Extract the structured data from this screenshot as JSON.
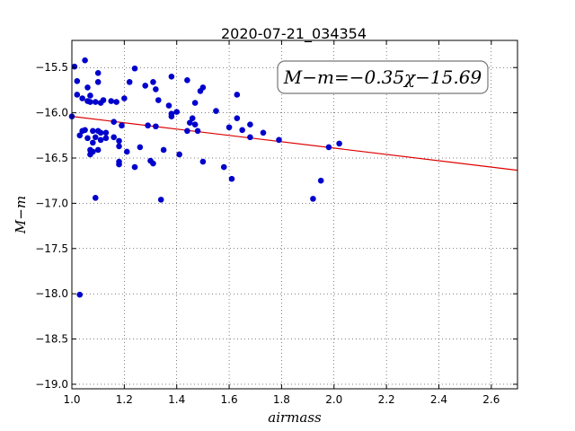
{
  "chart_data": {
    "type": "scatter",
    "title": "2020-07-21_034354",
    "xlabel": "airmass",
    "ylabel": "M−m",
    "xlim": [
      1.0,
      2.7
    ],
    "ylim": [
      -19.05,
      -15.2
    ],
    "y_inverted": true,
    "grid": true,
    "x_ticks": [
      1.0,
      1.2,
      1.4,
      1.6,
      1.8,
      2.0,
      2.2,
      2.4,
      2.6
    ],
    "x_tick_labels": [
      "1.0",
      "1.2",
      "1.4",
      "1.6",
      "1.8",
      "2.0",
      "2.2",
      "2.4",
      "2.6"
    ],
    "y_ticks": [
      -15.5,
      -16.0,
      -16.5,
      -17.0,
      -17.5,
      -18.0,
      -18.5,
      -19.0
    ],
    "y_tick_labels": [
      "−15.5",
      "−16.0",
      "−16.5",
      "−17.0",
      "−17.5",
      "−18.0",
      "−18.5",
      "−19.0"
    ],
    "annotation": "M−m=−0.35χ−15.69",
    "fit_line": {
      "slope": -0.35,
      "intercept": -15.69
    },
    "colors": {
      "points": "#0000cc",
      "fit": "#dd0000"
    },
    "points": [
      [
        1.0,
        -16.04
      ],
      [
        1.01,
        -15.49
      ],
      [
        1.02,
        -15.8
      ],
      [
        1.02,
        -15.65
      ],
      [
        1.03,
        -16.25
      ],
      [
        1.03,
        -18.01
      ],
      [
        1.04,
        -15.84
      ],
      [
        1.04,
        -16.2
      ],
      [
        1.05,
        -15.42
      ],
      [
        1.05,
        -16.19
      ],
      [
        1.06,
        -15.72
      ],
      [
        1.06,
        -15.87
      ],
      [
        1.06,
        -16.28
      ],
      [
        1.07,
        -15.81
      ],
      [
        1.07,
        -15.88
      ],
      [
        1.07,
        -16.41
      ],
      [
        1.07,
        -16.46
      ],
      [
        1.08,
        -16.33
      ],
      [
        1.08,
        -16.43
      ],
      [
        1.08,
        -16.2
      ],
      [
        1.09,
        -15.88
      ],
      [
        1.09,
        -16.27
      ],
      [
        1.09,
        -16.94
      ],
      [
        1.1,
        -15.66
      ],
      [
        1.1,
        -15.56
      ],
      [
        1.1,
        -16.2
      ],
      [
        1.1,
        -16.41
      ],
      [
        1.11,
        -16.22
      ],
      [
        1.11,
        -15.89
      ],
      [
        1.11,
        -16.3
      ],
      [
        1.12,
        -15.86
      ],
      [
        1.13,
        -16.28
      ],
      [
        1.13,
        -16.22
      ],
      [
        1.15,
        -15.87
      ],
      [
        1.16,
        -16.1
      ],
      [
        1.16,
        -16.27
      ],
      [
        1.17,
        -15.88
      ],
      [
        1.18,
        -16.31
      ],
      [
        1.18,
        -16.57
      ],
      [
        1.18,
        -16.54
      ],
      [
        1.18,
        -16.37
      ],
      [
        1.19,
        -16.14
      ],
      [
        1.2,
        -15.84
      ],
      [
        1.21,
        -16.43
      ],
      [
        1.22,
        -15.66
      ],
      [
        1.24,
        -15.51
      ],
      [
        1.24,
        -16.6
      ],
      [
        1.26,
        -16.38
      ],
      [
        1.28,
        -15.7
      ],
      [
        1.29,
        -16.14
      ],
      [
        1.3,
        -16.53
      ],
      [
        1.31,
        -15.66
      ],
      [
        1.31,
        -16.56
      ],
      [
        1.32,
        -16.15
      ],
      [
        1.32,
        -15.74
      ],
      [
        1.33,
        -15.86
      ],
      [
        1.34,
        -16.96
      ],
      [
        1.35,
        -16.41
      ],
      [
        1.37,
        -15.92
      ],
      [
        1.38,
        -15.6
      ],
      [
        1.38,
        -16.01
      ],
      [
        1.38,
        -16.04
      ],
      [
        1.4,
        -15.99
      ],
      [
        1.41,
        -16.46
      ],
      [
        1.44,
        -15.64
      ],
      [
        1.44,
        -16.2
      ],
      [
        1.45,
        -16.11
      ],
      [
        1.46,
        -16.06
      ],
      [
        1.47,
        -15.89
      ],
      [
        1.47,
        -16.13
      ],
      [
        1.48,
        -16.2
      ],
      [
        1.49,
        -15.76
      ],
      [
        1.5,
        -15.72
      ],
      [
        1.5,
        -16.54
      ],
      [
        1.55,
        -15.98
      ],
      [
        1.58,
        -16.6
      ],
      [
        1.6,
        -16.16
      ],
      [
        1.61,
        -16.73
      ],
      [
        1.63,
        -16.06
      ],
      [
        1.63,
        -15.8
      ],
      [
        1.65,
        -16.19
      ],
      [
        1.68,
        -16.27
      ],
      [
        1.68,
        -16.13
      ],
      [
        1.73,
        -16.22
      ],
      [
        1.79,
        -16.3
      ],
      [
        1.92,
        -16.95
      ],
      [
        1.95,
        -16.75
      ],
      [
        1.98,
        -16.38
      ],
      [
        2.02,
        -16.34
      ]
    ]
  }
}
